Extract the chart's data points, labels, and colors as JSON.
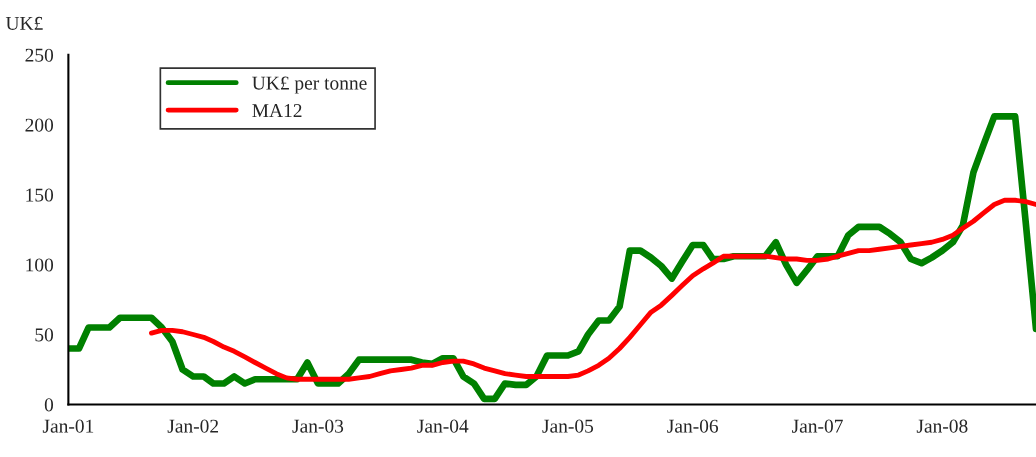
{
  "chart_data": {
    "type": "line",
    "ylabel": "UK£",
    "x": [
      "2001-01",
      "2001-02",
      "2001-03",
      "2001-04",
      "2001-05",
      "2001-06",
      "2001-07",
      "2001-08",
      "2001-09",
      "2001-10",
      "2001-11",
      "2001-12",
      "2002-01",
      "2002-02",
      "2002-03",
      "2002-04",
      "2002-05",
      "2002-06",
      "2002-07",
      "2002-08",
      "2002-09",
      "2002-10",
      "2002-11",
      "2002-12",
      "2003-01",
      "2003-02",
      "2003-03",
      "2003-04",
      "2003-05",
      "2003-06",
      "2003-07",
      "2003-08",
      "2003-09",
      "2003-10",
      "2003-11",
      "2003-12",
      "2004-01",
      "2004-02",
      "2004-03",
      "2004-04",
      "2004-05",
      "2004-06",
      "2004-07",
      "2004-08",
      "2004-09",
      "2004-10",
      "2004-11",
      "2004-12",
      "2005-01",
      "2005-02",
      "2005-03",
      "2005-04",
      "2005-05",
      "2005-06",
      "2005-07",
      "2005-08",
      "2005-09",
      "2005-10",
      "2005-11",
      "2005-12",
      "2006-01",
      "2006-02",
      "2006-03",
      "2006-04",
      "2006-05",
      "2006-06",
      "2006-07",
      "2006-08",
      "2006-09",
      "2006-10",
      "2006-11",
      "2006-12",
      "2007-01",
      "2007-02",
      "2007-03",
      "2007-04",
      "2007-05",
      "2007-06",
      "2007-07",
      "2007-08",
      "2007-09",
      "2007-10",
      "2007-11",
      "2007-12",
      "2008-01",
      "2008-02",
      "2008-03",
      "2008-04",
      "2008-05",
      "2008-06",
      "2008-07",
      "2008-08",
      "2008-09",
      "2008-10"
    ],
    "series": [
      {
        "name": "UK£ per tonne",
        "color": "#008000",
        "values": [
          40,
          40,
          55,
          55,
          55,
          62,
          62,
          62,
          62,
          55,
          45,
          25,
          20,
          20,
          15,
          15,
          20,
          15,
          18,
          18,
          18,
          18,
          18,
          30,
          15,
          15,
          15,
          22,
          32,
          32,
          32,
          32,
          32,
          32,
          30,
          29,
          33,
          33,
          20,
          15,
          4,
          4,
          15,
          14,
          14,
          20,
          35,
          35,
          35,
          38,
          50,
          60,
          60,
          70,
          110,
          110,
          105,
          99,
          90,
          102,
          114,
          114,
          104,
          104,
          106,
          106,
          106,
          106,
          116,
          100,
          87,
          96,
          106,
          106,
          106,
          121,
          127,
          127,
          127,
          122,
          116,
          104,
          101,
          105,
          110,
          116,
          128,
          166,
          186,
          206,
          206,
          206,
          130,
          54
        ]
      },
      {
        "name": "MA12",
        "color": "#ff0000",
        "values": [
          null,
          null,
          null,
          null,
          null,
          null,
          null,
          null,
          51,
          53,
          53,
          52,
          50,
          48,
          45,
          41,
          38,
          34,
          30,
          26,
          22,
          19,
          18,
          18,
          18,
          18,
          18,
          18,
          19,
          20,
          22,
          24,
          25,
          26,
          28,
          28,
          30,
          31,
          31,
          29,
          26,
          24,
          22,
          21,
          20,
          20,
          20,
          20,
          20,
          21,
          24,
          28,
          33,
          40,
          48,
          57,
          66,
          71,
          78,
          85,
          92,
          97,
          101,
          106,
          106,
          106,
          106,
          106,
          105,
          104,
          104,
          103,
          103,
          104,
          106,
          108,
          110,
          110,
          111,
          112,
          113,
          114,
          115,
          116,
          118,
          121,
          126,
          131,
          137,
          143,
          146,
          146,
          145,
          143
        ]
      }
    ],
    "xlim": [
      "2001-01",
      "2008-10"
    ],
    "xticks": [
      {
        "value": "2001-01",
        "label": "Jan-01"
      },
      {
        "value": "2002-01",
        "label": "Jan-02"
      },
      {
        "value": "2003-01",
        "label": "Jan-03"
      },
      {
        "value": "2004-01",
        "label": "Jan-04"
      },
      {
        "value": "2005-01",
        "label": "Jan-05"
      },
      {
        "value": "2006-01",
        "label": "Jan-06"
      },
      {
        "value": "2007-01",
        "label": "Jan-07"
      },
      {
        "value": "2008-01",
        "label": "Jan-08"
      }
    ],
    "ylim": [
      0,
      250
    ],
    "yticks": [
      0,
      50,
      100,
      150,
      200,
      250
    ],
    "grid": false,
    "legend": "top left",
    "marker": "none",
    "line_style": "solid"
  }
}
